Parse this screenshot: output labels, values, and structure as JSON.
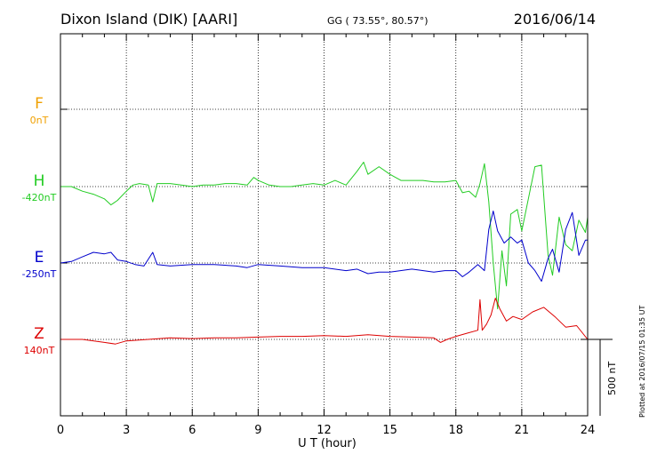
{
  "header": {
    "station": "Dixon Island (DIK)  [AARI]",
    "coords": "GG ( 73.55°,  80.57°)",
    "date": "2016/06/14"
  },
  "scale_bar_label": "500 nT",
  "plotted_note": "Plotted at 2016/07/15 01:35 UT",
  "chart_data": {
    "type": "line",
    "xlabel": "U T (hour)",
    "xlim": [
      0,
      24
    ],
    "x_ticks": [
      "0",
      "3",
      "6",
      "9",
      "12",
      "15",
      "18",
      "21",
      "24"
    ],
    "grid": true,
    "components": [
      {
        "letter": "F",
        "baseline": "0nT",
        "color": "#f0a000"
      },
      {
        "letter": "H",
        "baseline": "-420nT",
        "color": "#22cc22"
      },
      {
        "letter": "E",
        "baseline": "-250nT",
        "color": "#0000cc"
      },
      {
        "letter": "Z",
        "baseline": "140nT",
        "color": "#dd0000"
      }
    ],
    "scale_bar_nT": 500,
    "units": "nT, offset from listed baseline",
    "series": [
      {
        "name": "H",
        "color": "#22cc22",
        "points": [
          [
            0,
            0
          ],
          [
            0.5,
            0
          ],
          [
            1,
            -30
          ],
          [
            1.5,
            -50
          ],
          [
            2,
            -80
          ],
          [
            2.3,
            -120
          ],
          [
            2.6,
            -90
          ],
          [
            3,
            -30
          ],
          [
            3.3,
            10
          ],
          [
            3.6,
            20
          ],
          [
            4,
            10
          ],
          [
            4.2,
            -100
          ],
          [
            4.4,
            20
          ],
          [
            5,
            20
          ],
          [
            5.5,
            10
          ],
          [
            6,
            0
          ],
          [
            6.5,
            10
          ],
          [
            7,
            10
          ],
          [
            7.5,
            20
          ],
          [
            8,
            20
          ],
          [
            8.5,
            10
          ],
          [
            8.8,
            60
          ],
          [
            9,
            40
          ],
          [
            9.5,
            10
          ],
          [
            10,
            0
          ],
          [
            10.5,
            0
          ],
          [
            11,
            10
          ],
          [
            11.5,
            20
          ],
          [
            12,
            10
          ],
          [
            12.5,
            40
          ],
          [
            13,
            10
          ],
          [
            13.5,
            100
          ],
          [
            13.8,
            160
          ],
          [
            14,
            80
          ],
          [
            14.5,
            130
          ],
          [
            15,
            80
          ],
          [
            15.5,
            40
          ],
          [
            16,
            40
          ],
          [
            16.5,
            40
          ],
          [
            17,
            30
          ],
          [
            17.5,
            30
          ],
          [
            18,
            40
          ],
          [
            18.3,
            -40
          ],
          [
            18.6,
            -30
          ],
          [
            18.9,
            -70
          ],
          [
            19.1,
            20
          ],
          [
            19.3,
            150
          ],
          [
            19.5,
            -100
          ],
          [
            19.7,
            -500
          ],
          [
            19.9,
            -800
          ],
          [
            20.1,
            -420
          ],
          [
            20.3,
            -650
          ],
          [
            20.5,
            -180
          ],
          [
            20.8,
            -150
          ],
          [
            21,
            -290
          ],
          [
            21.3,
            -80
          ],
          [
            21.6,
            130
          ],
          [
            21.9,
            140
          ],
          [
            22.2,
            -450
          ],
          [
            22.4,
            -580
          ],
          [
            22.7,
            -200
          ],
          [
            23,
            -380
          ],
          [
            23.3,
            -420
          ],
          [
            23.6,
            -220
          ],
          [
            23.9,
            -300
          ],
          [
            24,
            -200
          ]
        ]
      },
      {
        "name": "E",
        "color": "#0000cc",
        "points": [
          [
            0,
            0
          ],
          [
            0.5,
            10
          ],
          [
            1,
            40
          ],
          [
            1.5,
            70
          ],
          [
            2,
            60
          ],
          [
            2.3,
            70
          ],
          [
            2.6,
            20
          ],
          [
            3,
            10
          ],
          [
            3.4,
            -10
          ],
          [
            3.8,
            -20
          ],
          [
            4.2,
            70
          ],
          [
            4.4,
            -10
          ],
          [
            5,
            -20
          ],
          [
            6,
            -10
          ],
          [
            7,
            -10
          ],
          [
            8,
            -20
          ],
          [
            8.5,
            -30
          ],
          [
            9,
            -10
          ],
          [
            10,
            -20
          ],
          [
            11,
            -30
          ],
          [
            12,
            -30
          ],
          [
            13,
            -50
          ],
          [
            13.5,
            -40
          ],
          [
            14,
            -70
          ],
          [
            14.5,
            -60
          ],
          [
            15,
            -60
          ],
          [
            16,
            -40
          ],
          [
            17,
            -60
          ],
          [
            17.5,
            -50
          ],
          [
            18,
            -50
          ],
          [
            18.3,
            -90
          ],
          [
            18.6,
            -60
          ],
          [
            19,
            -10
          ],
          [
            19.3,
            -50
          ],
          [
            19.5,
            220
          ],
          [
            19.7,
            340
          ],
          [
            19.9,
            210
          ],
          [
            20.2,
            130
          ],
          [
            20.5,
            170
          ],
          [
            20.8,
            130
          ],
          [
            21,
            150
          ],
          [
            21.3,
            0
          ],
          [
            21.6,
            -50
          ],
          [
            21.9,
            -120
          ],
          [
            22.2,
            30
          ],
          [
            22.4,
            90
          ],
          [
            22.7,
            -60
          ],
          [
            23,
            220
          ],
          [
            23.3,
            330
          ],
          [
            23.6,
            50
          ],
          [
            23.9,
            150
          ],
          [
            24,
            150
          ]
        ]
      },
      {
        "name": "Z",
        "color": "#dd0000",
        "points": [
          [
            0,
            0
          ],
          [
            1,
            0
          ],
          [
            2,
            -20
          ],
          [
            2.5,
            -30
          ],
          [
            3,
            -10
          ],
          [
            4,
            0
          ],
          [
            5,
            10
          ],
          [
            6,
            5
          ],
          [
            7,
            10
          ],
          [
            8,
            10
          ],
          [
            9,
            15
          ],
          [
            10,
            20
          ],
          [
            11,
            20
          ],
          [
            12,
            25
          ],
          [
            13,
            20
          ],
          [
            14,
            30
          ],
          [
            15,
            20
          ],
          [
            16,
            15
          ],
          [
            17,
            10
          ],
          [
            17.3,
            -20
          ],
          [
            17.6,
            0
          ],
          [
            18,
            20
          ],
          [
            18.5,
            40
          ],
          [
            19,
            60
          ],
          [
            19.1,
            260
          ],
          [
            19.2,
            60
          ],
          [
            19.4,
            100
          ],
          [
            19.6,
            160
          ],
          [
            19.8,
            270
          ],
          [
            20,
            200
          ],
          [
            20.3,
            120
          ],
          [
            20.6,
            150
          ],
          [
            21,
            130
          ],
          [
            21.5,
            180
          ],
          [
            22,
            210
          ],
          [
            22.5,
            150
          ],
          [
            23,
            80
          ],
          [
            23.5,
            90
          ],
          [
            24,
            0
          ]
        ]
      }
    ]
  }
}
